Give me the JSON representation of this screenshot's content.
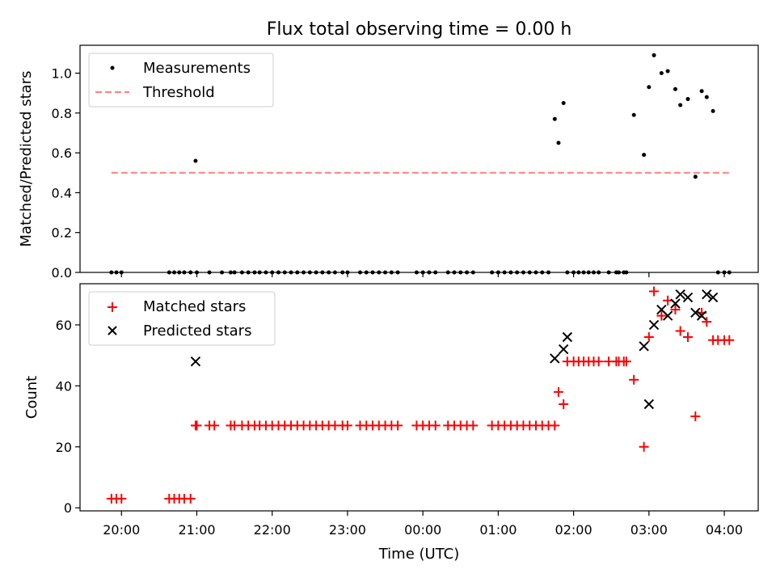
{
  "figure": {
    "title": "Flux total observing time = 0.00 h",
    "xlabel": "Time (UTC)",
    "xticks": [
      "20:00",
      "21:00",
      "22:00",
      "23:00",
      "00:00",
      "01:00",
      "02:00",
      "03:00",
      "04:00"
    ]
  },
  "chart_data": [
    {
      "type": "scatter",
      "ylabel": "Matched/Predicted stars",
      "xlim_hours": [
        19.45,
        28.45
      ],
      "ylim": [
        0,
        1.14
      ],
      "yticks": [
        "0.0",
        "0.2",
        "0.4",
        "0.6",
        "0.8",
        "1.0"
      ],
      "legend_position": "top-left",
      "series": [
        {
          "name": "Measurements",
          "marker": "dot",
          "color": "#000000",
          "x": [
            "19:52",
            "19:56",
            "20:00",
            "20:38",
            "20:42",
            "20:46",
            "20:50",
            "20:55",
            "20:59",
            "21:00",
            "21:10",
            "21:20",
            "21:27",
            "21:30",
            "21:36",
            "21:41",
            "21:46",
            "21:50",
            "21:55",
            "22:00",
            "22:05",
            "22:10",
            "22:15",
            "22:20",
            "22:25",
            "22:30",
            "22:35",
            "22:40",
            "22:45",
            "22:50",
            "22:56",
            "23:00",
            "23:10",
            "23:15",
            "23:20",
            "23:25",
            "23:30",
            "23:35",
            "23:40",
            "23:55",
            "24:00",
            "24:05",
            "24:10",
            "24:20",
            "24:25",
            "24:30",
            "24:35",
            "24:40",
            "24:55",
            "25:00",
            "25:05",
            "25:10",
            "25:15",
            "25:20",
            "25:25",
            "25:30",
            "25:35",
            "25:40",
            "25:45",
            "25:48",
            "25:52",
            "25:55",
            "26:00",
            "26:04",
            "26:08",
            "26:12",
            "26:16",
            "26:20",
            "26:28",
            "26:34",
            "26:36",
            "26:40",
            "26:42",
            "26:48",
            "26:56",
            "27:00",
            "27:04",
            "27:10",
            "27:15",
            "27:21",
            "27:25",
            "27:31",
            "27:37",
            "27:42",
            "27:46",
            "27:51",
            "27:55",
            "28:00",
            "28:04"
          ],
          "y": [
            0,
            0,
            0,
            0,
            0,
            0,
            0,
            0,
            0.56,
            0,
            0,
            0,
            0,
            0,
            0,
            0,
            0,
            0,
            0,
            0,
            0,
            0,
            0,
            0,
            0,
            0,
            0,
            0,
            0,
            0,
            0,
            0,
            0,
            0,
            0,
            0,
            0,
            0,
            0,
            0,
            0,
            0,
            0,
            0,
            0,
            0,
            0,
            0,
            0,
            0,
            0,
            0,
            0,
            0,
            0,
            0,
            0,
            0,
            0.77,
            0.65,
            0.85,
            0,
            0,
            0,
            0,
            0,
            0,
            0,
            0,
            0,
            0,
            0,
            0,
            0.79,
            0.59,
            0.93,
            1.09,
            1.0,
            1.01,
            0.92,
            0.84,
            0.87,
            0.48,
            0.91,
            0.88,
            0.81,
            0,
            0,
            0
          ]
        },
        {
          "name": "Threshold",
          "style": "dashed",
          "color": "#ff7f7f",
          "x": [
            "19:52",
            "28:04"
          ],
          "y": [
            0.5,
            0.5
          ]
        }
      ]
    },
    {
      "type": "scatter",
      "ylabel": "Count",
      "xlim_hours": [
        19.45,
        28.45
      ],
      "ylim": [
        -1,
        73.5
      ],
      "yticks": [
        "0",
        "20",
        "40",
        "60"
      ],
      "legend_position": "top-left",
      "series": [
        {
          "name": "Matched stars",
          "marker": "plus",
          "color": "#ff0000",
          "x": [
            "19:52",
            "19:56",
            "20:00",
            "20:38",
            "20:42",
            "20:46",
            "20:50",
            "20:55",
            "20:59",
            "21:00",
            "21:10",
            "21:14",
            "21:27",
            "21:30",
            "21:36",
            "21:41",
            "21:46",
            "21:50",
            "21:55",
            "22:00",
            "22:05",
            "22:10",
            "22:15",
            "22:20",
            "22:25",
            "22:30",
            "22:35",
            "22:40",
            "22:45",
            "22:50",
            "22:56",
            "23:00",
            "23:10",
            "23:15",
            "23:20",
            "23:25",
            "23:30",
            "23:35",
            "23:40",
            "23:55",
            "24:00",
            "24:05",
            "24:10",
            "24:20",
            "24:25",
            "24:30",
            "24:35",
            "24:40",
            "24:55",
            "25:00",
            "25:05",
            "25:10",
            "25:15",
            "25:20",
            "25:25",
            "25:30",
            "25:35",
            "25:40",
            "25:45",
            "25:48",
            "25:52",
            "25:55",
            "26:00",
            "26:04",
            "26:08",
            "26:12",
            "26:16",
            "26:20",
            "26:28",
            "26:34",
            "26:36",
            "26:40",
            "26:42",
            "26:48",
            "26:56",
            "27:00",
            "27:04",
            "27:10",
            "27:15",
            "27:21",
            "27:25",
            "27:31",
            "27:37",
            "27:42",
            "27:46",
            "27:51",
            "27:55",
            "28:00",
            "28:04"
          ],
          "y": [
            3,
            3,
            3,
            3,
            3,
            3,
            3,
            3,
            27,
            27,
            27,
            27,
            27,
            27,
            27,
            27,
            27,
            27,
            27,
            27,
            27,
            27,
            27,
            27,
            27,
            27,
            27,
            27,
            27,
            27,
            27,
            27,
            27,
            27,
            27,
            27,
            27,
            27,
            27,
            27,
            27,
            27,
            27,
            27,
            27,
            27,
            27,
            27,
            27,
            27,
            27,
            27,
            27,
            27,
            27,
            27,
            27,
            27,
            27,
            38,
            34,
            48,
            48,
            48,
            48,
            48,
            48,
            48,
            48,
            48,
            48,
            48,
            48,
            42,
            20,
            56,
            71,
            63,
            68,
            65,
            58,
            56,
            30,
            64,
            61,
            55,
            55,
            55,
            55
          ]
        },
        {
          "name": "Predicted stars",
          "marker": "x",
          "color": "#000000",
          "x": [
            "20:59",
            "25:45",
            "25:52",
            "25:55",
            "26:56",
            "27:00",
            "27:04",
            "27:10",
            "27:15",
            "27:21",
            "27:25",
            "27:31",
            "27:37",
            "27:42",
            "27:46",
            "27:51"
          ],
          "y": [
            48,
            49,
            52,
            56,
            53,
            34,
            60,
            65,
            63,
            67,
            70,
            69,
            64,
            63,
            70,
            69
          ]
        }
      ]
    }
  ]
}
